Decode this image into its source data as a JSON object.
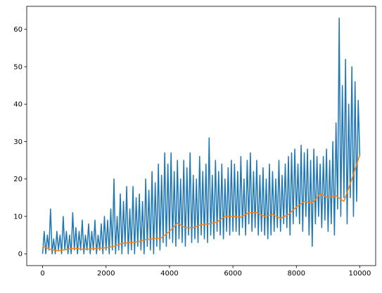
{
  "chart_data": {
    "type": "line",
    "xlim": [
      -500,
      10500
    ],
    "ylim": [
      -3.15,
      66.15
    ],
    "xticks": [
      0,
      2000,
      4000,
      6000,
      8000,
      10000
    ],
    "yticks": [
      0,
      10,
      20,
      30,
      40,
      50,
      60
    ],
    "series": [
      {
        "color": "#1f77b4",
        "x": [
          0,
          50,
          100,
          150,
          200,
          250,
          300,
          350,
          400,
          450,
          500,
          550,
          600,
          650,
          700,
          750,
          800,
          850,
          900,
          950,
          1000,
          1050,
          1100,
          1150,
          1200,
          1250,
          1300,
          1350,
          1400,
          1450,
          1500,
          1550,
          1600,
          1650,
          1700,
          1750,
          1800,
          1850,
          1900,
          1950,
          2000,
          2050,
          2100,
          2150,
          2200,
          2250,
          2300,
          2350,
          2400,
          2450,
          2500,
          2550,
          2600,
          2650,
          2700,
          2750,
          2800,
          2850,
          2900,
          2950,
          3000,
          3050,
          3100,
          3150,
          3200,
          3250,
          3300,
          3350,
          3400,
          3450,
          3500,
          3550,
          3600,
          3650,
          3700,
          3750,
          3800,
          3850,
          3900,
          3950,
          4000,
          4050,
          4100,
          4150,
          4200,
          4250,
          4300,
          4350,
          4400,
          4450,
          4500,
          4550,
          4600,
          4650,
          4700,
          4750,
          4800,
          4850,
          4900,
          4950,
          5000,
          5050,
          5100,
          5150,
          5200,
          5250,
          5300,
          5350,
          5400,
          5450,
          5500,
          5550,
          5600,
          5650,
          5700,
          5750,
          5800,
          5850,
          5900,
          5950,
          6000,
          6050,
          6100,
          6150,
          6200,
          6250,
          6300,
          6350,
          6400,
          6450,
          6500,
          6550,
          6600,
          6650,
          6700,
          6750,
          6800,
          6850,
          6900,
          6950,
          7000,
          7050,
          7100,
          7150,
          7200,
          7250,
          7300,
          7350,
          7400,
          7450,
          7500,
          7550,
          7600,
          7650,
          7700,
          7750,
          7800,
          7850,
          7900,
          7950,
          8000,
          8050,
          8100,
          8150,
          8200,
          8250,
          8300,
          8350,
          8400,
          8450,
          8500,
          8550,
          8600,
          8650,
          8700,
          8750,
          8800,
          8850,
          8900,
          8950,
          9000,
          9050,
          9100,
          9150,
          9200,
          9250,
          9300,
          9350,
          9400,
          9450,
          9500,
          9550,
          9600,
          9650,
          9700,
          9750,
          9800,
          9850,
          9900,
          9950,
          10000
        ],
        "values": [
          0,
          6,
          0,
          5,
          1,
          12,
          0,
          4,
          0,
          6,
          1,
          5,
          0,
          10,
          1,
          6,
          0,
          5,
          0,
          11,
          1,
          7,
          0,
          6,
          1,
          9,
          0,
          5,
          1,
          8,
          0,
          6,
          1,
          9,
          0,
          5,
          1,
          8,
          0,
          10,
          1,
          9,
          0,
          12,
          1,
          20,
          0,
          10,
          1,
          16,
          0,
          14,
          2,
          18,
          0,
          12,
          1,
          18,
          0,
          15,
          2,
          16,
          1,
          14,
          0,
          20,
          2,
          17,
          1,
          22,
          0,
          19,
          2,
          24,
          1,
          21,
          3,
          27,
          2,
          24,
          4,
          27,
          3,
          22,
          2,
          25,
          4,
          20,
          3,
          25,
          2,
          23,
          5,
          27,
          3,
          21,
          4,
          20,
          3,
          26,
          5,
          22,
          4,
          24,
          3,
          31,
          5,
          21,
          4,
          25,
          6,
          22,
          5,
          24,
          4,
          20,
          6,
          23,
          5,
          25,
          6,
          24,
          6,
          22,
          5,
          26,
          7,
          20,
          5,
          25,
          8,
          27,
          6,
          22,
          7,
          25,
          5,
          21,
          6,
          23,
          5,
          20,
          4,
          24,
          5,
          22,
          6,
          20,
          7,
          25,
          6,
          21,
          8,
          24,
          7,
          26,
          5,
          27,
          8,
          28,
          10,
          24,
          8,
          29,
          6,
          27,
          10,
          28,
          5,
          25,
          2,
          28,
          8,
          26,
          10,
          24,
          7,
          26,
          9,
          28,
          6,
          25,
          8,
          30,
          5,
          35,
          12,
          63,
          10,
          45,
          15,
          52,
          8,
          40,
          15,
          50,
          10,
          46,
          14,
          41,
          26
        ]
      },
      {
        "color": "#ff7f0e",
        "x": [
          0,
          250,
          500,
          750,
          1000,
          1250,
          1500,
          1750,
          2000,
          2250,
          2500,
          2750,
          3000,
          3250,
          3500,
          3750,
          4000,
          4250,
          4500,
          4750,
          5000,
          5250,
          5500,
          5750,
          6000,
          6250,
          6500,
          6750,
          7000,
          7250,
          7500,
          7750,
          8000,
          8250,
          8500,
          8750,
          9000,
          9250,
          9500,
          9750,
          10000
        ],
        "values": [
          2,
          1.2,
          0.8,
          1.2,
          1.5,
          1.2,
          1.3,
          1.5,
          1.6,
          2,
          2.8,
          3,
          3.2,
          3.8,
          4,
          4.3,
          6,
          8.2,
          7,
          7,
          7.8,
          8,
          8.5,
          10,
          10,
          9.8,
          11,
          11,
          10,
          10.5,
          9.5,
          10.5,
          12.5,
          14,
          13.5,
          16,
          15,
          15.5,
          14,
          20,
          26.5
        ]
      }
    ]
  }
}
